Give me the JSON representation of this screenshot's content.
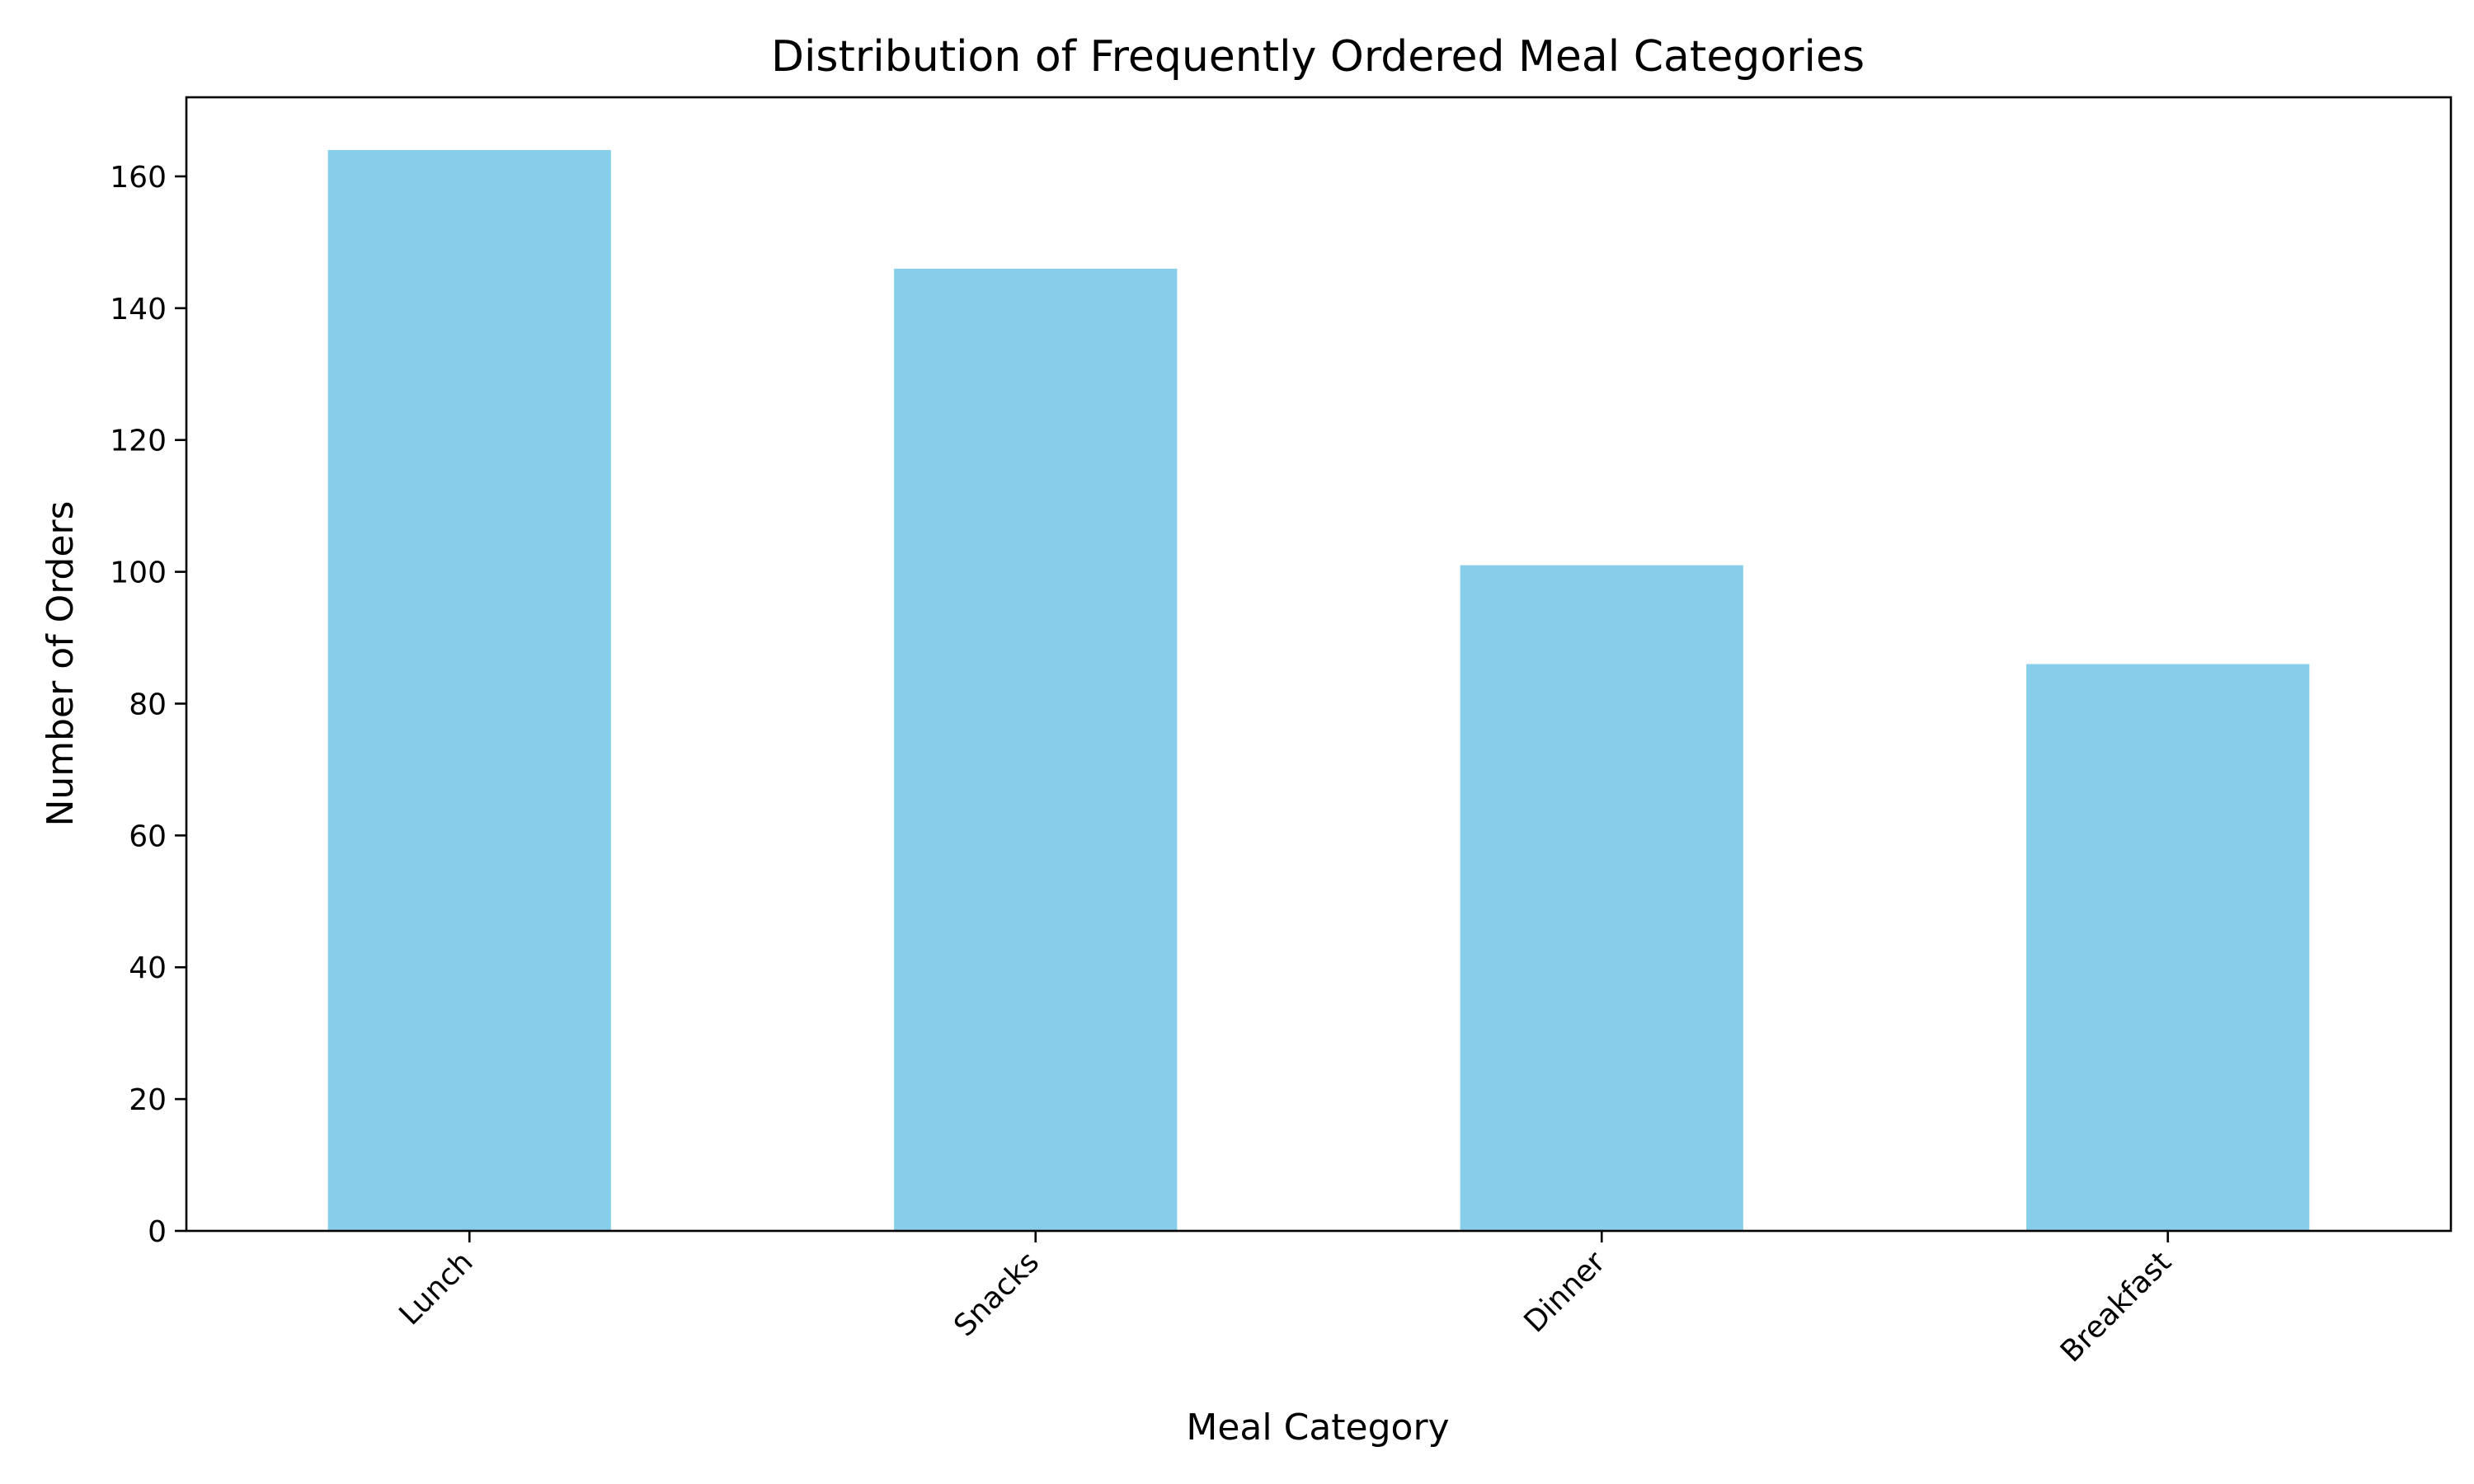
{
  "chart_data": {
    "type": "bar",
    "title": "Distribution of Frequently Ordered Meal Categories",
    "xlabel": "Meal Category",
    "ylabel": "Number of Orders",
    "categories": [
      "Lunch",
      "Snacks",
      "Dinner",
      "Breakfast"
    ],
    "values": [
      164,
      146,
      101,
      86
    ],
    "ylim": [
      0,
      172
    ],
    "yticks": [
      0,
      20,
      40,
      60,
      80,
      100,
      120,
      140,
      160
    ],
    "grid": false,
    "bar_color": "#87ceeb",
    "xtick_rotation": -45
  }
}
